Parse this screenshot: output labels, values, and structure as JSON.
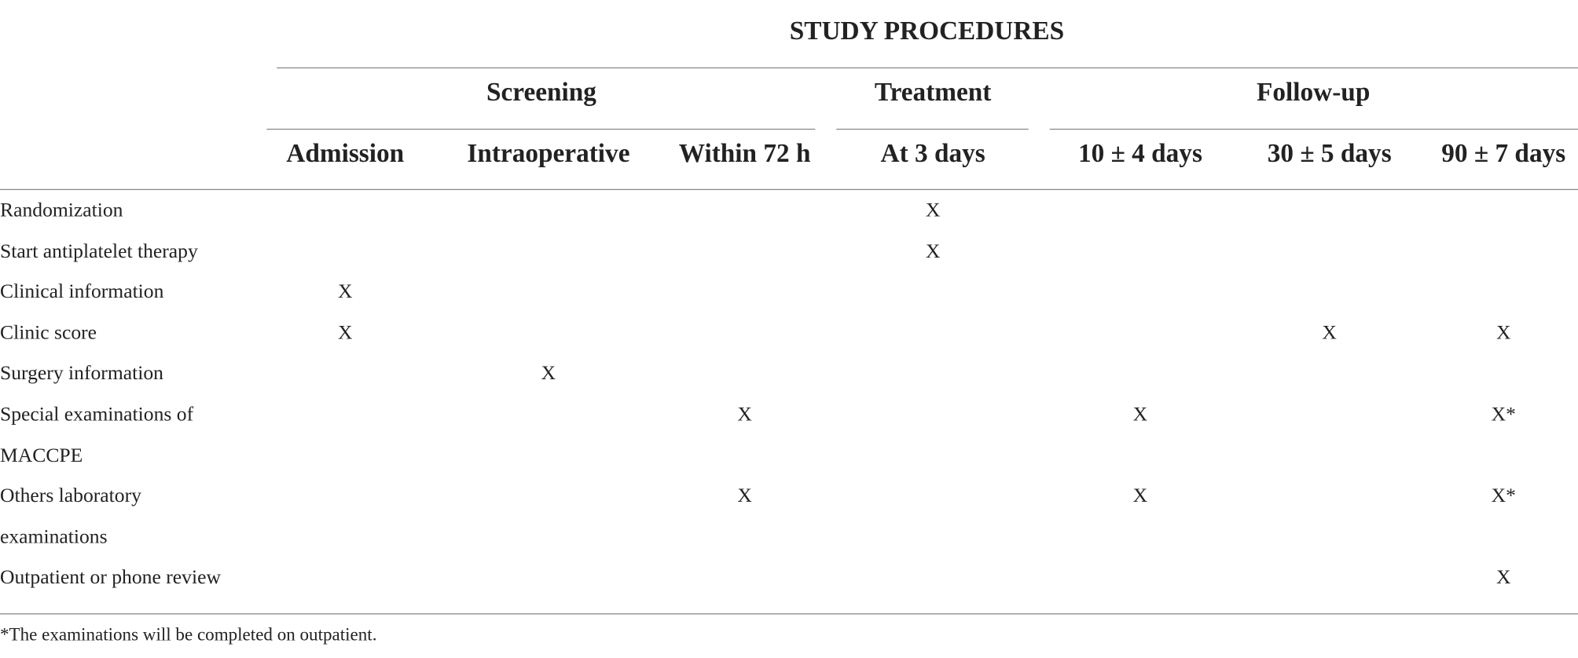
{
  "header": {
    "title": "STUDY PROCEDURES",
    "groups": [
      "Screening",
      "Treatment",
      "Follow-up"
    ],
    "columns": [
      "Admission",
      "Intraoperative",
      "Within 72 h",
      "At 3 days",
      "10 ± 4 days",
      "30 ± 5 days",
      "90 ± 7 days"
    ]
  },
  "rows": [
    {
      "label": "Randomization",
      "cells": [
        null,
        null,
        null,
        "X",
        null,
        null,
        null
      ]
    },
    {
      "label": "Start antiplatelet therapy",
      "cells": [
        null,
        null,
        null,
        "X",
        null,
        null,
        null
      ]
    },
    {
      "label": "Clinical information",
      "cells": [
        "X",
        null,
        null,
        null,
        null,
        null,
        null
      ]
    },
    {
      "label": "Clinic score",
      "cells": [
        "X",
        null,
        null,
        null,
        null,
        "X",
        "X"
      ]
    },
    {
      "label": "Surgery information",
      "cells": [
        null,
        "X",
        null,
        null,
        null,
        null,
        null
      ]
    },
    {
      "label": "Special examinations of MACCPE",
      "cells": [
        null,
        null,
        "X",
        null,
        "X",
        null,
        "X*"
      ]
    },
    {
      "label": "Others laboratory examinations",
      "cells": [
        null,
        null,
        "X",
        null,
        "X",
        null,
        "X*"
      ]
    },
    {
      "label": "Outpatient or phone review",
      "cells": [
        null,
        null,
        null,
        null,
        null,
        null,
        "X"
      ]
    }
  ],
  "footnote": "*The examinations will be completed on outpatient."
}
